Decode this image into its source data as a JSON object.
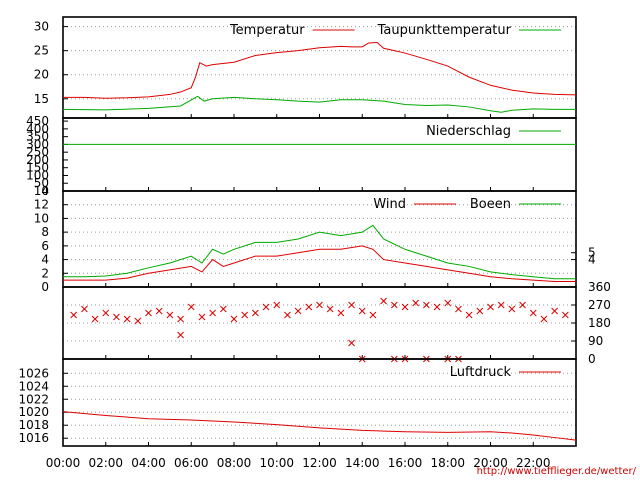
{
  "source_url": "http://www.tiefflieger.de/wetter/",
  "colors": {
    "red": "#dd0000",
    "green": "#00aa00",
    "grid": "#9a9a9a",
    "axis": "#000000"
  },
  "chart_data": [
    {
      "type": "line",
      "panel": "temperature",
      "x_tick_labels": [
        "00:00",
        "02:00",
        "04:00",
        "06:00",
        "08:00",
        "10:00",
        "12:00",
        "14:00",
        "16:00",
        "18:00",
        "20:00",
        "22:00"
      ],
      "x_domain_hours": [
        0,
        24
      ],
      "y_ticks": [
        15,
        20,
        25,
        30
      ],
      "ylim": [
        11,
        32
      ],
      "grid": true,
      "legend_position": "top-right",
      "series": [
        {
          "name": "Temperatur",
          "color": "#dd0000",
          "x": [
            0,
            1,
            2,
            3,
            4,
            5,
            5.5,
            6,
            6.2,
            6.4,
            6.7,
            7,
            8,
            9,
            10,
            11,
            12,
            13,
            13.5,
            14,
            14.3,
            14.7,
            15,
            15.5,
            16,
            17,
            18,
            19,
            20,
            21,
            22,
            23,
            24
          ],
          "y": [
            15.3,
            15.3,
            15.1,
            15.2,
            15.4,
            15.9,
            16.4,
            17.3,
            19.5,
            22.5,
            21.8,
            22.1,
            22.6,
            24.0,
            24.6,
            25.0,
            25.6,
            25.9,
            25.8,
            25.8,
            26.6,
            26.7,
            25.5,
            25.0,
            24.5,
            23.2,
            21.8,
            19.5,
            17.8,
            16.8,
            16.2,
            15.9,
            15.8
          ]
        },
        {
          "name": "Taupunkttemperatur",
          "color": "#00aa00",
          "x": [
            0,
            2,
            4,
            5.5,
            6.3,
            6.6,
            7,
            8,
            9,
            10,
            11,
            12,
            13,
            14,
            15,
            16,
            17,
            18,
            19,
            20,
            20.5,
            21,
            22,
            23,
            24
          ],
          "y": [
            12.8,
            12.7,
            13.0,
            13.5,
            15.5,
            14.5,
            15.0,
            15.3,
            15.0,
            14.8,
            14.5,
            14.3,
            14.8,
            14.8,
            14.5,
            13.8,
            13.6,
            13.7,
            13.3,
            12.5,
            12.2,
            12.6,
            12.9,
            12.8,
            12.8
          ]
        }
      ]
    },
    {
      "type": "line",
      "panel": "precipitation",
      "y_ticks": [
        0,
        50,
        100,
        150,
        200,
        250,
        300,
        350,
        400,
        450
      ],
      "ylim": [
        0,
        470
      ],
      "grid": false,
      "legend_position": "top-right",
      "series": [
        {
          "name": "Niederschlag",
          "color": "#00aa00",
          "x": [
            0,
            24
          ],
          "y": [
            300,
            300
          ]
        }
      ]
    },
    {
      "type": "line",
      "panel": "wind",
      "y_ticks": [
        0,
        2,
        4,
        6,
        8,
        10,
        12,
        14
      ],
      "right_ticks": [
        4,
        5
      ],
      "ylim": [
        0,
        14
      ],
      "grid": true,
      "legend_position": "top-right",
      "series": [
        {
          "name": "Wind",
          "color": "#dd0000",
          "x": [
            0,
            1,
            2,
            3,
            4,
            5,
            6,
            6.5,
            7,
            7.5,
            8,
            9,
            10,
            11,
            12,
            13,
            14,
            14.5,
            15,
            16,
            17,
            18,
            19,
            20,
            21,
            22,
            23,
            24
          ],
          "y": [
            1,
            1,
            1,
            1.3,
            2,
            2.5,
            3,
            2.2,
            4,
            3,
            3.5,
            4.5,
            4.5,
            5,
            5.5,
            5.5,
            6,
            5.5,
            4,
            3.5,
            3,
            2.5,
            2,
            1.5,
            1.2,
            1,
            0.8,
            0.8
          ]
        },
        {
          "name": "Boeen",
          "color": "#00aa00",
          "x": [
            0,
            1,
            2,
            3,
            4,
            5,
            6,
            6.5,
            7,
            7.5,
            8,
            9,
            10,
            11,
            12,
            13,
            14,
            14.5,
            15,
            16,
            17,
            18,
            19,
            20,
            21,
            22,
            23,
            24
          ],
          "y": [
            1.5,
            1.5,
            1.6,
            2,
            2.8,
            3.5,
            4.5,
            3.5,
            5.5,
            4.8,
            5.5,
            6.5,
            6.5,
            7,
            8,
            7.5,
            8,
            9,
            7,
            5.5,
            4.5,
            3.5,
            3,
            2.2,
            1.8,
            1.5,
            1.2,
            1.2
          ]
        }
      ]
    },
    {
      "type": "scatter",
      "panel": "wind-direction",
      "right_ticks": [
        0,
        90,
        180,
        270,
        360
      ],
      "ylim": [
        0,
        360
      ],
      "grid": true,
      "marker": "x",
      "color": "#dd0000",
      "x": [
        0.5,
        1,
        1.5,
        2,
        2.5,
        3,
        3.5,
        4,
        4.5,
        5,
        5.5,
        6,
        6.5,
        7,
        7.5,
        8,
        8.5,
        9,
        9.5,
        10,
        10.5,
        11,
        11.5,
        12,
        12.5,
        13,
        13.5,
        14,
        14.5,
        15,
        15.5,
        16,
        16.5,
        17,
        17.5,
        18,
        18.5,
        19,
        19.5,
        20,
        20.5,
        21,
        21.5,
        22,
        22.5,
        23,
        23.5,
        5.5,
        13.5,
        14,
        15.5,
        16,
        17,
        18,
        18.5
      ],
      "y": [
        220,
        250,
        200,
        230,
        210,
        200,
        190,
        230,
        240,
        220,
        200,
        260,
        210,
        230,
        250,
        200,
        220,
        230,
        260,
        270,
        220,
        240,
        260,
        270,
        250,
        230,
        270,
        240,
        220,
        290,
        270,
        260,
        280,
        270,
        260,
        280,
        250,
        220,
        240,
        260,
        270,
        250,
        270,
        230,
        200,
        240,
        220,
        120,
        80,
        0,
        0,
        0,
        0,
        0,
        0
      ]
    },
    {
      "type": "line",
      "panel": "pressure",
      "y_ticks": [
        1016,
        1018,
        1020,
        1022,
        1024,
        1026
      ],
      "ylim": [
        1014.8,
        1028.2
      ],
      "grid": true,
      "legend_position": "top-right",
      "series": [
        {
          "name": "Luftdruck",
          "color": "#dd0000",
          "x": [
            0,
            2,
            4,
            6,
            8,
            10,
            12,
            14,
            16,
            18,
            20,
            21,
            22,
            23,
            24
          ],
          "y": [
            1020.1,
            1019.5,
            1019.0,
            1018.8,
            1018.5,
            1018.1,
            1017.6,
            1017.2,
            1017.0,
            1016.9,
            1017.0,
            1016.8,
            1016.5,
            1016.1,
            1015.7
          ]
        }
      ]
    }
  ]
}
